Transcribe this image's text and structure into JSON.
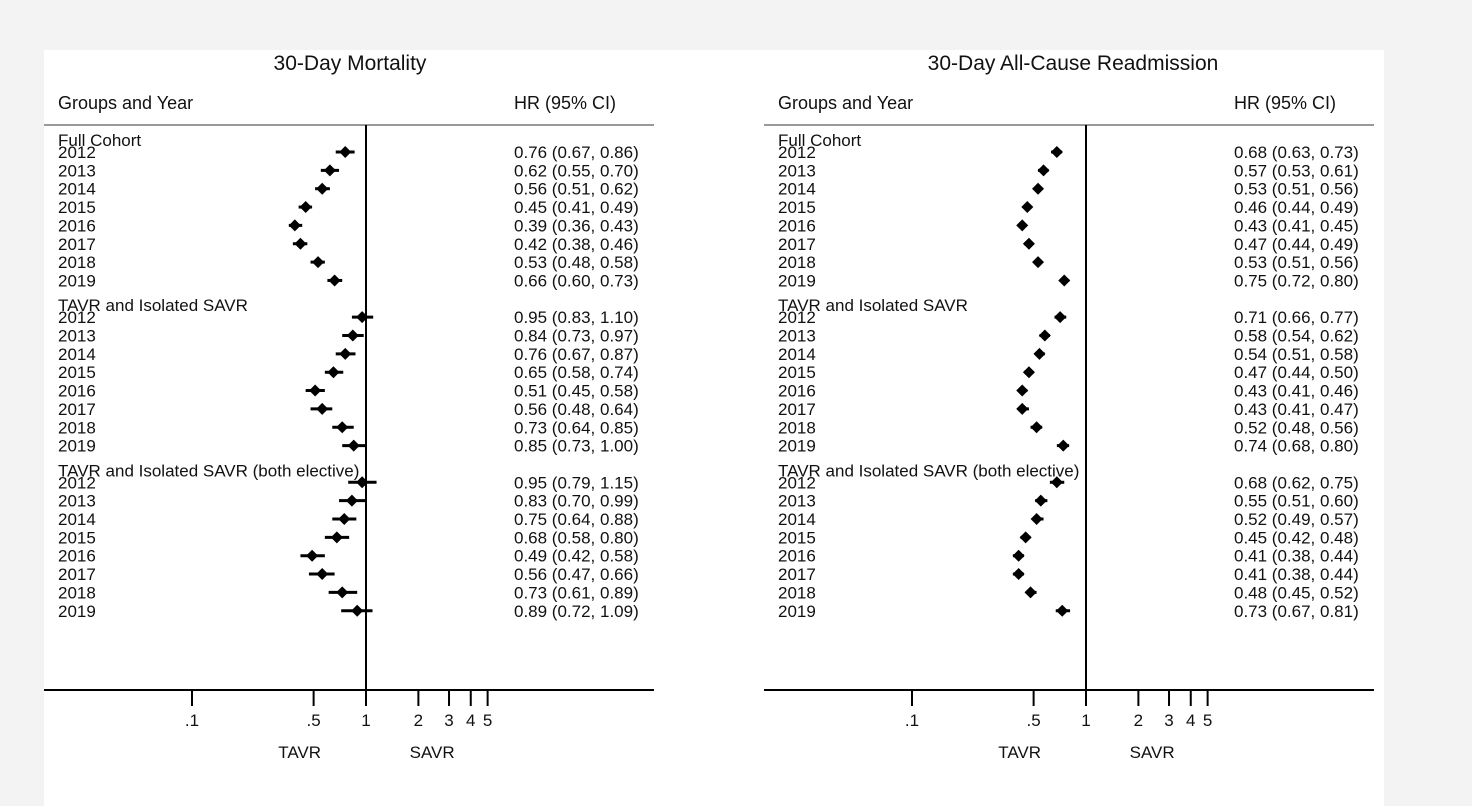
{
  "chart_data": [
    {
      "type": "forest",
      "title": "30-Day Mortality",
      "col_left": "Groups and Year",
      "col_right": "HR (95% CI)",
      "x_scale": "log",
      "xlim": [
        0.05,
        6
      ],
      "ref_line": 1,
      "ticks": [
        ".1",
        ".5",
        "1",
        "2",
        "3",
        "4",
        "5"
      ],
      "tick_values": [
        0.1,
        0.5,
        1,
        2,
        3,
        4,
        5
      ],
      "favor_left": "TAVR",
      "favor_right": "SAVR",
      "groups": [
        {
          "name": "Full Cohort",
          "rows": [
            {
              "year": "2012",
              "hr": 0.76,
              "lo": 0.67,
              "hi": 0.86,
              "text": "0.76 (0.67, 0.86)"
            },
            {
              "year": "2013",
              "hr": 0.62,
              "lo": 0.55,
              "hi": 0.7,
              "text": "0.62 (0.55, 0.70)"
            },
            {
              "year": "2014",
              "hr": 0.56,
              "lo": 0.51,
              "hi": 0.62,
              "text": "0.56 (0.51, 0.62)"
            },
            {
              "year": "2015",
              "hr": 0.45,
              "lo": 0.41,
              "hi": 0.49,
              "text": "0.45 (0.41, 0.49)"
            },
            {
              "year": "2016",
              "hr": 0.39,
              "lo": 0.36,
              "hi": 0.43,
              "text": "0.39 (0.36, 0.43)"
            },
            {
              "year": "2017",
              "hr": 0.42,
              "lo": 0.38,
              "hi": 0.46,
              "text": "0.42 (0.38, 0.46)"
            },
            {
              "year": "2018",
              "hr": 0.53,
              "lo": 0.48,
              "hi": 0.58,
              "text": "0.53 (0.48, 0.58)"
            },
            {
              "year": "2019",
              "hr": 0.66,
              "lo": 0.6,
              "hi": 0.73,
              "text": "0.66 (0.60, 0.73)"
            }
          ]
        },
        {
          "name": "TAVR and Isolated SAVR",
          "rows": [
            {
              "year": "2012",
              "hr": 0.95,
              "lo": 0.83,
              "hi": 1.1,
              "text": "0.95 (0.83, 1.10)"
            },
            {
              "year": "2013",
              "hr": 0.84,
              "lo": 0.73,
              "hi": 0.97,
              "text": "0.84 (0.73, 0.97)"
            },
            {
              "year": "2014",
              "hr": 0.76,
              "lo": 0.67,
              "hi": 0.87,
              "text": "0.76 (0.67, 0.87)"
            },
            {
              "year": "2015",
              "hr": 0.65,
              "lo": 0.58,
              "hi": 0.74,
              "text": "0.65 (0.58, 0.74)"
            },
            {
              "year": "2016",
              "hr": 0.51,
              "lo": 0.45,
              "hi": 0.58,
              "text": "0.51 (0.45, 0.58)"
            },
            {
              "year": "2017",
              "hr": 0.56,
              "lo": 0.48,
              "hi": 0.64,
              "text": "0.56 (0.48, 0.64)"
            },
            {
              "year": "2018",
              "hr": 0.73,
              "lo": 0.64,
              "hi": 0.85,
              "text": "0.73 (0.64, 0.85)"
            },
            {
              "year": "2019",
              "hr": 0.85,
              "lo": 0.73,
              "hi": 1.0,
              "text": "0.85 (0.73, 1.00)"
            }
          ]
        },
        {
          "name": "TAVR and Isolated SAVR (both elective)",
          "rows": [
            {
              "year": "2012",
              "hr": 0.95,
              "lo": 0.79,
              "hi": 1.15,
              "text": "0.95 (0.79, 1.15)"
            },
            {
              "year": "2013",
              "hr": 0.83,
              "lo": 0.7,
              "hi": 0.99,
              "text": "0.83 (0.70, 0.99)"
            },
            {
              "year": "2014",
              "hr": 0.75,
              "lo": 0.64,
              "hi": 0.88,
              "text": "0.75 (0.64, 0.88)"
            },
            {
              "year": "2015",
              "hr": 0.68,
              "lo": 0.58,
              "hi": 0.8,
              "text": "0.68 (0.58, 0.80)"
            },
            {
              "year": "2016",
              "hr": 0.49,
              "lo": 0.42,
              "hi": 0.58,
              "text": "0.49 (0.42, 0.58)"
            },
            {
              "year": "2017",
              "hr": 0.56,
              "lo": 0.47,
              "hi": 0.66,
              "text": "0.56 (0.47, 0.66)"
            },
            {
              "year": "2018",
              "hr": 0.73,
              "lo": 0.61,
              "hi": 0.89,
              "text": "0.73 (0.61, 0.89)"
            },
            {
              "year": "2019",
              "hr": 0.89,
              "lo": 0.72,
              "hi": 1.09,
              "text": "0.89 (0.72, 1.09)"
            }
          ]
        }
      ]
    },
    {
      "type": "forest",
      "title": "30-Day All-Cause Readmission",
      "col_left": "Groups and Year",
      "col_right": "HR (95% CI)",
      "x_scale": "log",
      "xlim": [
        0.05,
        6
      ],
      "ref_line": 1,
      "ticks": [
        ".1",
        ".5",
        "1",
        "2",
        "3",
        "4",
        "5"
      ],
      "tick_values": [
        0.1,
        0.5,
        1,
        2,
        3,
        4,
        5
      ],
      "favor_left": "TAVR",
      "favor_right": "SAVR",
      "groups": [
        {
          "name": "Full Cohort",
          "rows": [
            {
              "year": "2012",
              "hr": 0.68,
              "lo": 0.63,
              "hi": 0.73,
              "text": "0.68 (0.63, 0.73)"
            },
            {
              "year": "2013",
              "hr": 0.57,
              "lo": 0.53,
              "hi": 0.61,
              "text": "0.57 (0.53, 0.61)"
            },
            {
              "year": "2014",
              "hr": 0.53,
              "lo": 0.51,
              "hi": 0.56,
              "text": "0.53 (0.51, 0.56)"
            },
            {
              "year": "2015",
              "hr": 0.46,
              "lo": 0.44,
              "hi": 0.49,
              "text": "0.46 (0.44, 0.49)"
            },
            {
              "year": "2016",
              "hr": 0.43,
              "lo": 0.41,
              "hi": 0.45,
              "text": "0.43 (0.41, 0.45)"
            },
            {
              "year": "2017",
              "hr": 0.47,
              "lo": 0.44,
              "hi": 0.49,
              "text": "0.47 (0.44, 0.49)"
            },
            {
              "year": "2018",
              "hr": 0.53,
              "lo": 0.51,
              "hi": 0.56,
              "text": "0.53 (0.51, 0.56)"
            },
            {
              "year": "2019",
              "hr": 0.75,
              "lo": 0.72,
              "hi": 0.8,
              "text": "0.75 (0.72, 0.80)"
            }
          ]
        },
        {
          "name": "TAVR and Isolated SAVR",
          "rows": [
            {
              "year": "2012",
              "hr": 0.71,
              "lo": 0.66,
              "hi": 0.77,
              "text": "0.71 (0.66, 0.77)"
            },
            {
              "year": "2013",
              "hr": 0.58,
              "lo": 0.54,
              "hi": 0.62,
              "text": "0.58 (0.54, 0.62)"
            },
            {
              "year": "2014",
              "hr": 0.54,
              "lo": 0.51,
              "hi": 0.58,
              "text": "0.54 (0.51, 0.58)"
            },
            {
              "year": "2015",
              "hr": 0.47,
              "lo": 0.44,
              "hi": 0.5,
              "text": "0.47 (0.44, 0.50)"
            },
            {
              "year": "2016",
              "hr": 0.43,
              "lo": 0.41,
              "hi": 0.46,
              "text": "0.43 (0.41, 0.46)"
            },
            {
              "year": "2017",
              "hr": 0.43,
              "lo": 0.41,
              "hi": 0.47,
              "text": "0.43 (0.41, 0.47)"
            },
            {
              "year": "2018",
              "hr": 0.52,
              "lo": 0.48,
              "hi": 0.56,
              "text": "0.52 (0.48, 0.56)"
            },
            {
              "year": "2019",
              "hr": 0.74,
              "lo": 0.68,
              "hi": 0.8,
              "text": "0.74 (0.68, 0.80)"
            }
          ]
        },
        {
          "name": "TAVR and Isolated SAVR (both elective)",
          "rows": [
            {
              "year": "2012",
              "hr": 0.68,
              "lo": 0.62,
              "hi": 0.75,
              "text": "0.68 (0.62, 0.75)"
            },
            {
              "year": "2013",
              "hr": 0.55,
              "lo": 0.51,
              "hi": 0.6,
              "text": "0.55 (0.51, 0.60)"
            },
            {
              "year": "2014",
              "hr": 0.52,
              "lo": 0.49,
              "hi": 0.57,
              "text": "0.52 (0.49, 0.57)"
            },
            {
              "year": "2015",
              "hr": 0.45,
              "lo": 0.42,
              "hi": 0.48,
              "text": "0.45 (0.42, 0.48)"
            },
            {
              "year": "2016",
              "hr": 0.41,
              "lo": 0.38,
              "hi": 0.44,
              "text": "0.41 (0.38, 0.44)"
            },
            {
              "year": "2017",
              "hr": 0.41,
              "lo": 0.38,
              "hi": 0.44,
              "text": "0.41 (0.38, 0.44)"
            },
            {
              "year": "2018",
              "hr": 0.48,
              "lo": 0.45,
              "hi": 0.52,
              "text": "0.48 (0.45, 0.52)"
            },
            {
              "year": "2019",
              "hr": 0.73,
              "lo": 0.67,
              "hi": 0.81,
              "text": "0.73 (0.67, 0.81)"
            }
          ]
        }
      ]
    }
  ]
}
